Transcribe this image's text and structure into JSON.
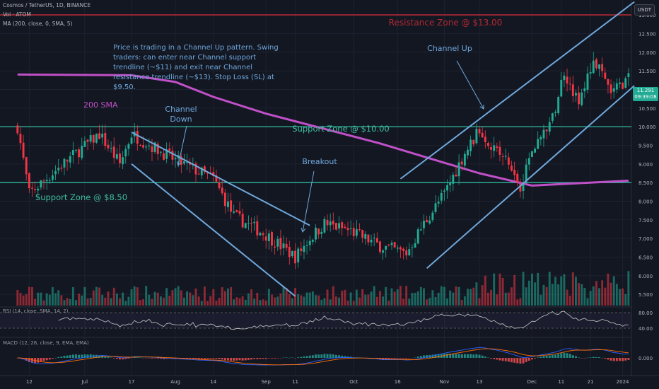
{
  "header": {
    "symbol": "Cosmos / TetherUS, 1D, BINANCE",
    "volume": "Vol · ATOM",
    "ma": "MA (200, close, 0, SMA, 5)",
    "currency": "USDT"
  },
  "price_tag": {
    "value": "11.291",
    "countdown": "09:39:08"
  },
  "indicators": {
    "rsi_label": "RSI (14, close, SMA, 14, 2)",
    "macd_label": "MACD (12, 26, close, 9, EMA, EMA)"
  },
  "colors": {
    "background": "#131722",
    "up": "#22ab94",
    "down": "#f23645",
    "channel": "#6fa8dc",
    "sma": "#c050c8",
    "support": "#2b9e8a",
    "resistance": "#b22833",
    "annotation": "#6fa8dc",
    "support_text": "#3fbf9f"
  },
  "chart_data": {
    "type": "candlestick",
    "title": "Cosmos / TetherUS, 1D, BINANCE",
    "x_tick_labels": [
      "12",
      "Jul",
      "17",
      "Aug",
      "14",
      "Sep",
      "11",
      "Oct",
      "16",
      "Nov",
      "13",
      "Dec",
      "11",
      "21",
      "2024"
    ],
    "y_tick_labels": [
      "13.000",
      "12.500",
      "12.000",
      "11.500",
      "11.000",
      "10.500",
      "10.000",
      "9.500",
      "9.000",
      "8.500",
      "8.000",
      "7.500",
      "7.000",
      "6.500",
      "6.000",
      "5.500"
    ],
    "y_range": [
      5.2,
      13.4
    ],
    "rsi_ticks": [
      "80.00",
      "40.00"
    ],
    "macd_ticks": [
      "0.000"
    ],
    "close_keypoints": [
      {
        "date": "2023-06-08",
        "close": 10.0
      },
      {
        "date": "2023-06-12",
        "close": 8.2
      },
      {
        "date": "2023-06-25",
        "close": 9.1
      },
      {
        "date": "2023-07-06",
        "close": 9.8
      },
      {
        "date": "2023-07-13",
        "close": 9.0
      },
      {
        "date": "2023-07-17",
        "close": 9.8
      },
      {
        "date": "2023-08-01",
        "close": 9.1
      },
      {
        "date": "2023-08-14",
        "close": 8.6
      },
      {
        "date": "2023-08-21",
        "close": 7.6
      },
      {
        "date": "2023-09-01",
        "close": 7.1
      },
      {
        "date": "2023-09-11",
        "close": 6.5
      },
      {
        "date": "2023-09-16",
        "close": 7.0
      },
      {
        "date": "2023-09-21",
        "close": 7.4
      },
      {
        "date": "2023-09-30",
        "close": 7.2
      },
      {
        "date": "2023-10-10",
        "close": 6.8
      },
      {
        "date": "2023-10-19",
        "close": 6.6
      },
      {
        "date": "2023-10-25",
        "close": 7.4
      },
      {
        "date": "2023-11-01",
        "close": 8.2
      },
      {
        "date": "2023-11-08",
        "close": 9.3
      },
      {
        "date": "2023-11-13",
        "close": 9.9
      },
      {
        "date": "2023-11-22",
        "close": 9.1
      },
      {
        "date": "2023-11-27",
        "close": 8.4
      },
      {
        "date": "2023-12-01",
        "close": 9.4
      },
      {
        "date": "2023-12-08",
        "close": 10.2
      },
      {
        "date": "2023-12-12",
        "close": 11.5
      },
      {
        "date": "2023-12-17",
        "close": 10.6
      },
      {
        "date": "2023-12-22",
        "close": 11.8
      },
      {
        "date": "2023-12-28",
        "close": 10.9
      },
      {
        "date": "2024-01-03",
        "close": 11.3
      }
    ],
    "sma200_keypoints": [
      {
        "date": "2023-06-08",
        "value": 11.4
      },
      {
        "date": "2023-07-17",
        "value": 11.38
      },
      {
        "date": "2023-08-01",
        "value": 11.2
      },
      {
        "date": "2023-08-14",
        "value": 10.8
      },
      {
        "date": "2023-09-01",
        "value": 10.35
      },
      {
        "date": "2023-10-10",
        "value": 9.55
      },
      {
        "date": "2023-11-13",
        "value": 8.75
      },
      {
        "date": "2023-12-01",
        "value": 8.42
      },
      {
        "date": "2024-01-03",
        "value": 8.55
      }
    ],
    "annotations": {
      "note": "Price is trading in a Channel Up pattern. Swing traders: can enter near Channel support trendline (~$11) and exit near Channel resistance trendline (~$13). Stop Loss (SL) at $9.50.",
      "resistance": "Resistance Zone @ $13.00",
      "support_10": "Support Zone @ $10.00",
      "support_85": "Support Zone @ $8.50",
      "sma": "200 SMA",
      "channel_down": "Channel Down",
      "channel_up": "Channel Up",
      "breakout": "Breakout"
    },
    "levels": {
      "resistance": 13.0,
      "support_high": 10.0,
      "support_low": 8.5
    }
  }
}
